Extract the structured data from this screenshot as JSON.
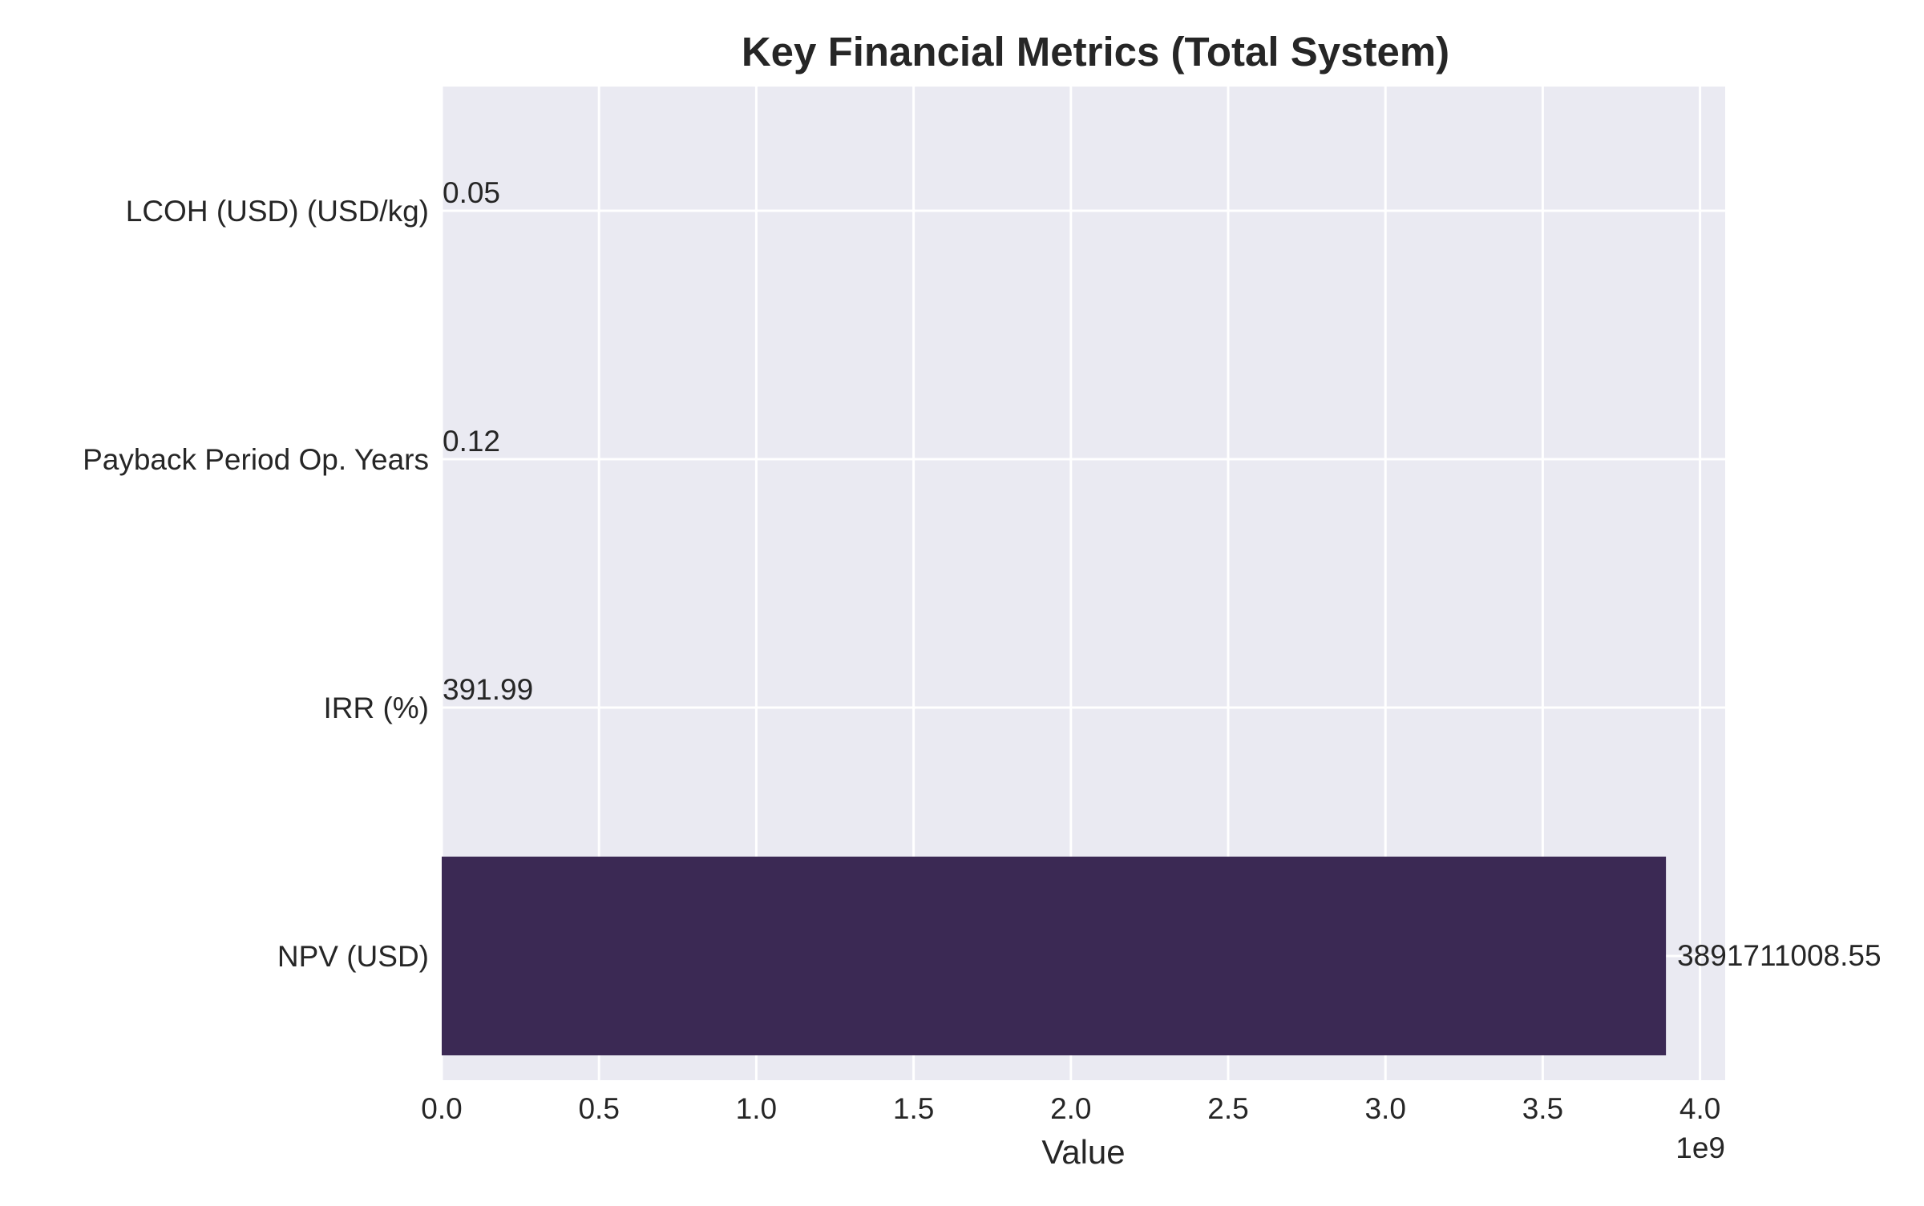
{
  "chart_data": {
    "type": "bar",
    "orientation": "horizontal",
    "title": "Key Financial Metrics (Total System)",
    "xlabel": "Value",
    "ylabel": "",
    "x_offset_label": "1e9",
    "categories": [
      "NPV (USD)",
      "IRR (%)",
      "Payback Period Op. Years",
      "LCOH (USD) (USD/kg)"
    ],
    "values": [
      3891711008.55,
      391.99,
      0.12,
      0.05
    ],
    "value_labels": [
      "3891711008.55",
      "391.99",
      "0.12",
      "0.05"
    ],
    "xlim": [
      0,
      4080000000.0
    ],
    "xticks": [
      0,
      500000000.0,
      1000000000.0,
      1500000000.0,
      2000000000.0,
      2500000000.0,
      3000000000.0,
      3500000000.0,
      4000000000.0
    ],
    "xtick_labels": [
      "0.0",
      "0.5",
      "1.0",
      "1.5",
      "2.0",
      "2.5",
      "3.0",
      "3.5",
      "4.0"
    ],
    "grid": true,
    "colors": {
      "bar": "#3b2954",
      "plot_background": "#eaeaf2",
      "grid": "#ffffff",
      "text": "#262626"
    }
  }
}
